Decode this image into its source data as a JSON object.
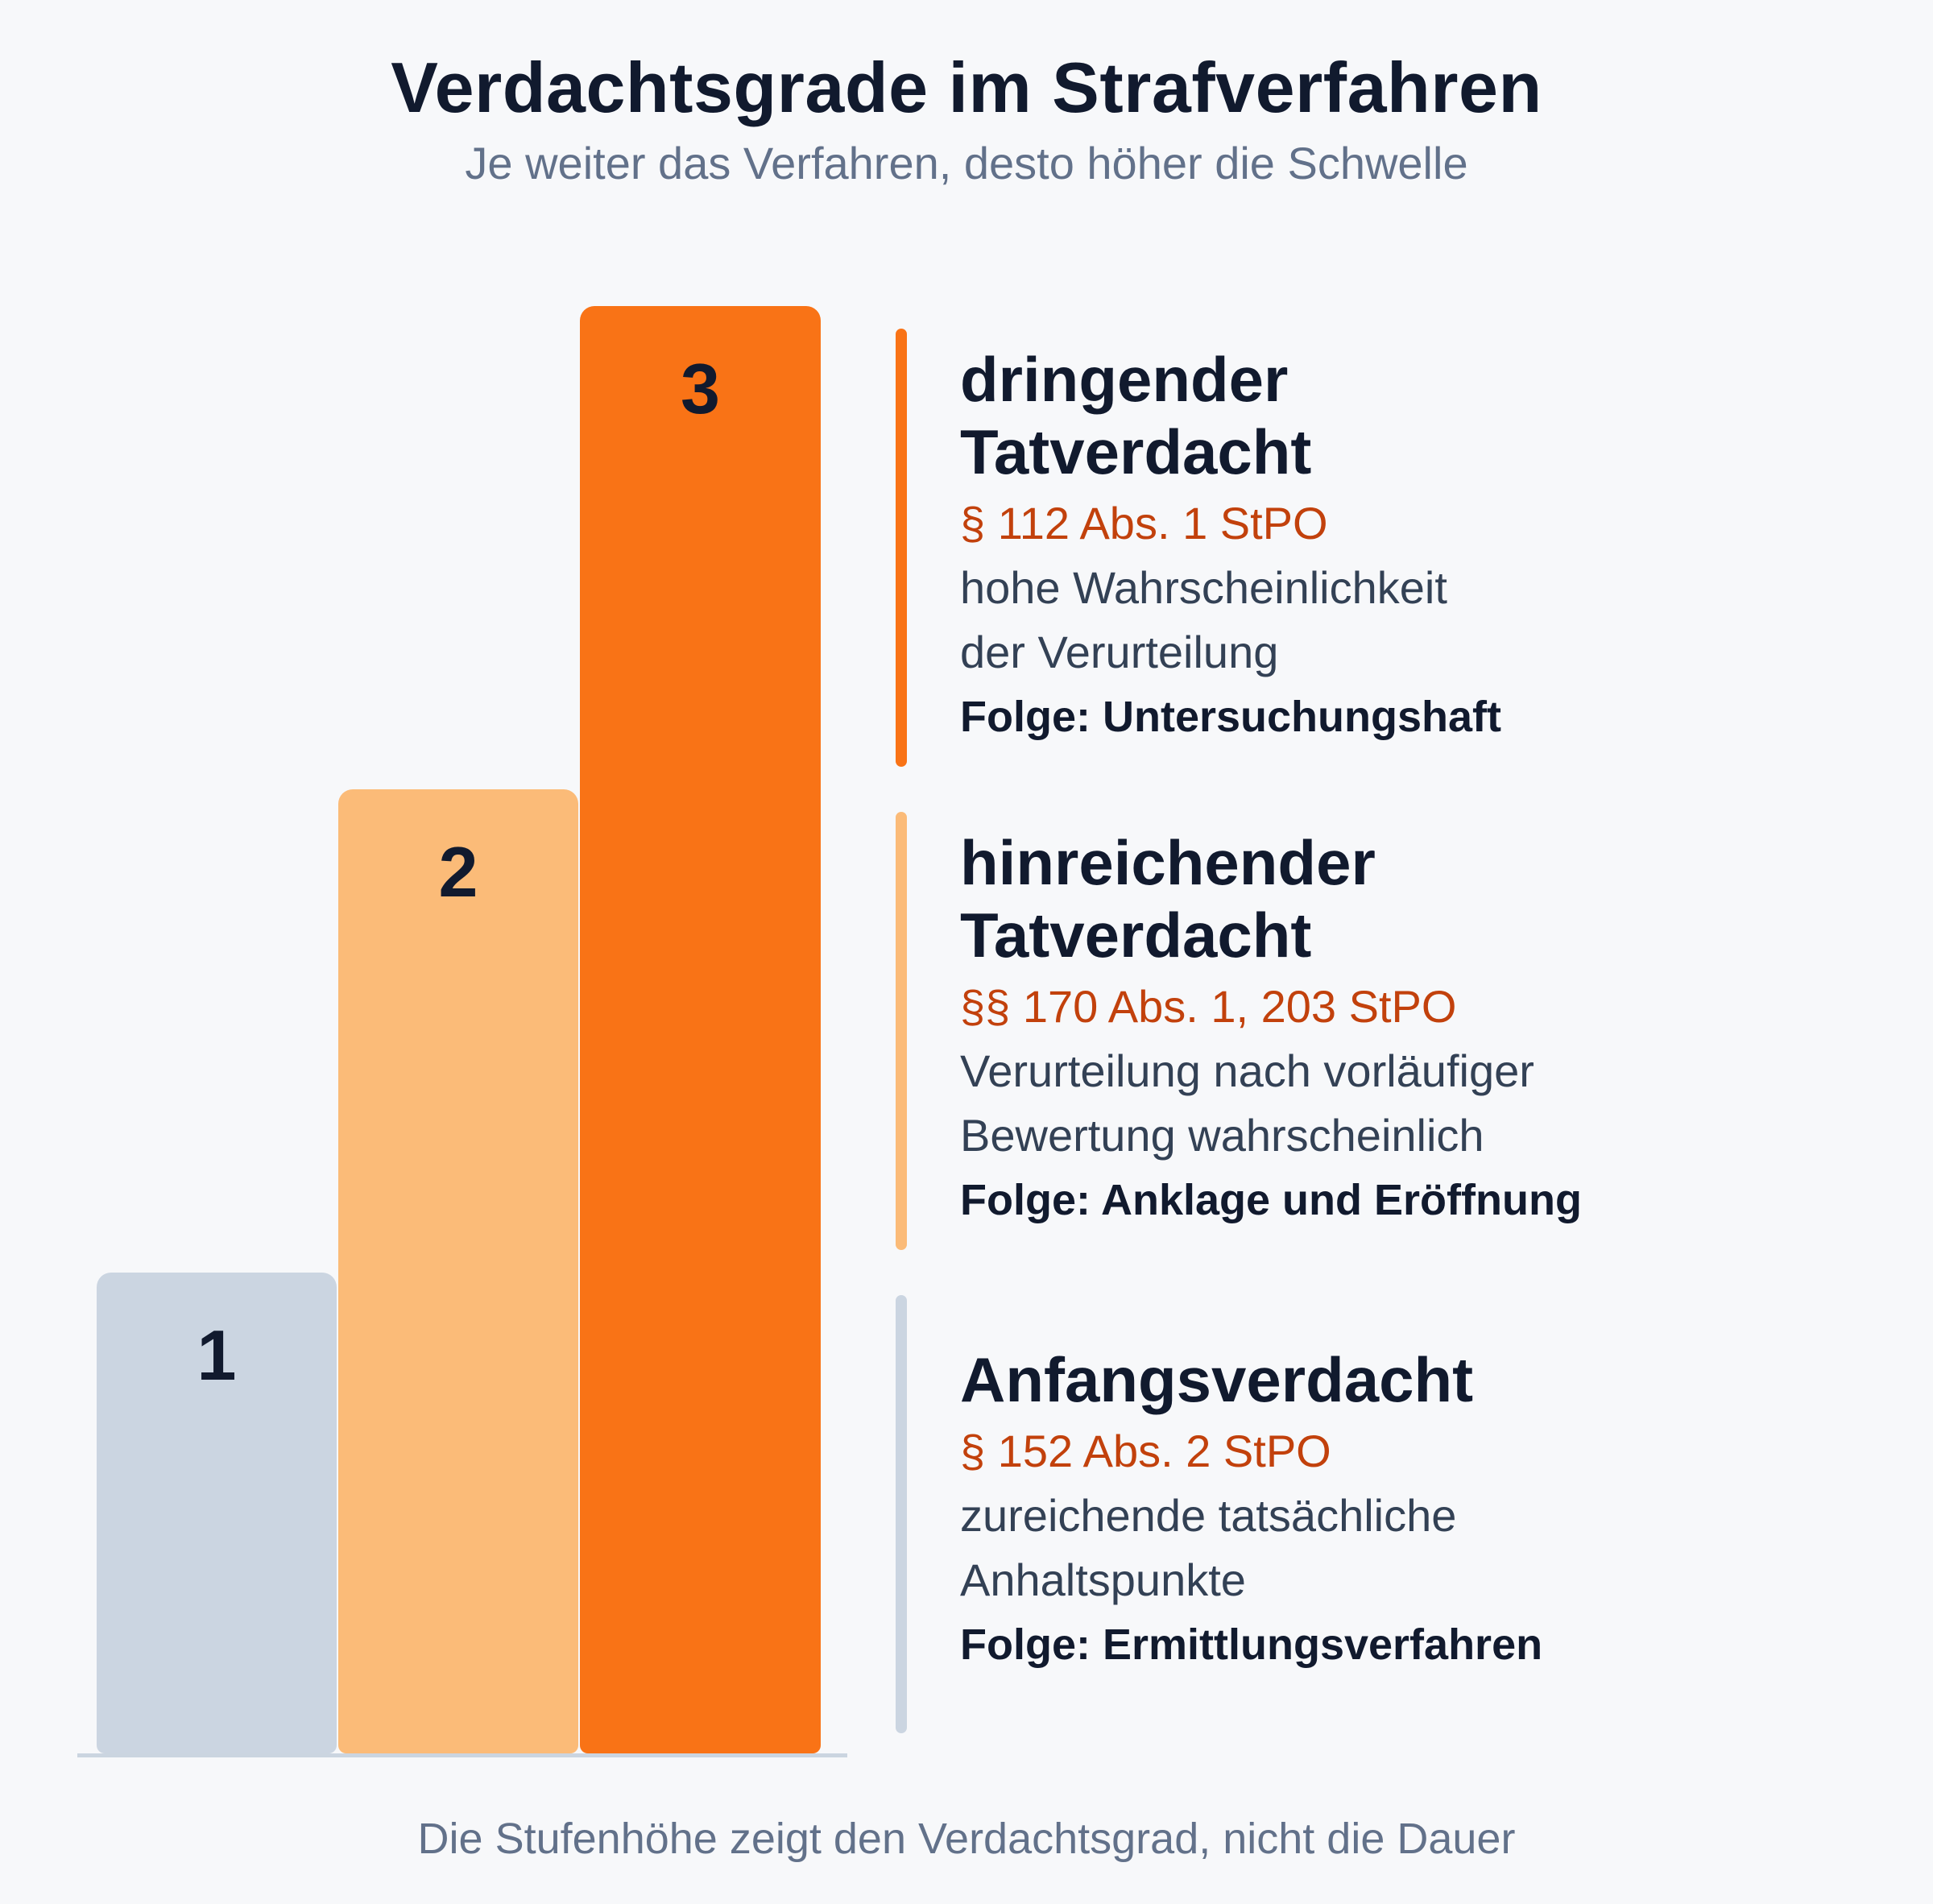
{
  "title": "Verdachtsgrade im Strafverfahren",
  "subtitle": "Je weiter das Verfahren, desto höher die Schwelle",
  "footer": "Die Stufenhöhe zeigt den Verdachtsgrad, nicht die Dauer",
  "colors": {
    "level1": "#cbd5e1",
    "level2": "#fbbb78",
    "level3": "#f97316",
    "reference": "#c2410c"
  },
  "steps": [
    {
      "label": "1",
      "height_level": 1
    },
    {
      "label": "2",
      "height_level": 2
    },
    {
      "label": "3",
      "height_level": 3
    }
  ],
  "levels": [
    {
      "title_line1": "dringender",
      "title_line2": "Tatverdacht",
      "reference": "§ 112 Abs. 1 StPO",
      "desc_line1": "hohe Wahrscheinlichkeit",
      "desc_line2": "der Verurteilung",
      "consequence": "Folge: Untersuchungshaft"
    },
    {
      "title_line1": "hinreichender",
      "title_line2": "Tatverdacht",
      "reference": "§§ 170 Abs. 1, 203 StPO",
      "desc_line1": "Verurteilung nach vorläufiger",
      "desc_line2": "Bewertung wahrscheinlich",
      "consequence": "Folge: Anklage und Eröffnung"
    },
    {
      "title_line1": "Anfangsverdacht",
      "reference": "§ 152 Abs. 2 StPO",
      "desc_line1": "zureichende tatsächliche",
      "desc_line2": "Anhaltspunkte",
      "consequence": "Folge: Ermittlungsverfahren"
    }
  ]
}
